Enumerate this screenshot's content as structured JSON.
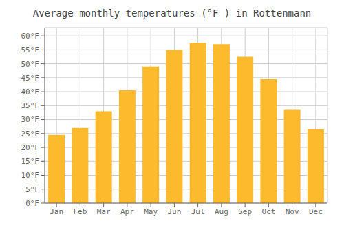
{
  "chart_data": {
    "type": "bar",
    "title": "Average monthly temperatures (°F ) in Rottenmann",
    "categories": [
      "Jan",
      "Feb",
      "Mar",
      "Apr",
      "May",
      "Jun",
      "Jul",
      "Aug",
      "Sep",
      "Oct",
      "Nov",
      "Dec"
    ],
    "values": [
      24.5,
      27.0,
      33.0,
      40.5,
      49.0,
      55.0,
      57.5,
      57.0,
      52.5,
      44.5,
      33.5,
      26.5
    ],
    "color": "#FDBA2D",
    "ylim": [
      0,
      63
    ],
    "yticks": [
      {
        "value": 0,
        "label": "0°F"
      },
      {
        "value": 5,
        "label": "5°F"
      },
      {
        "value": 10,
        "label": "10°F"
      },
      {
        "value": 15,
        "label": "15°F"
      },
      {
        "value": 20,
        "label": "20°F"
      },
      {
        "value": 25,
        "label": "25°F"
      },
      {
        "value": 30,
        "label": "30°F"
      },
      {
        "value": 35,
        "label": "35°F"
      },
      {
        "value": 40,
        "label": "40°F"
      },
      {
        "value": 45,
        "label": "45°F"
      },
      {
        "value": 50,
        "label": "50°F"
      },
      {
        "value": 55,
        "label": "55°F"
      },
      {
        "value": 60,
        "label": "60°F"
      }
    ],
    "grid": true
  }
}
